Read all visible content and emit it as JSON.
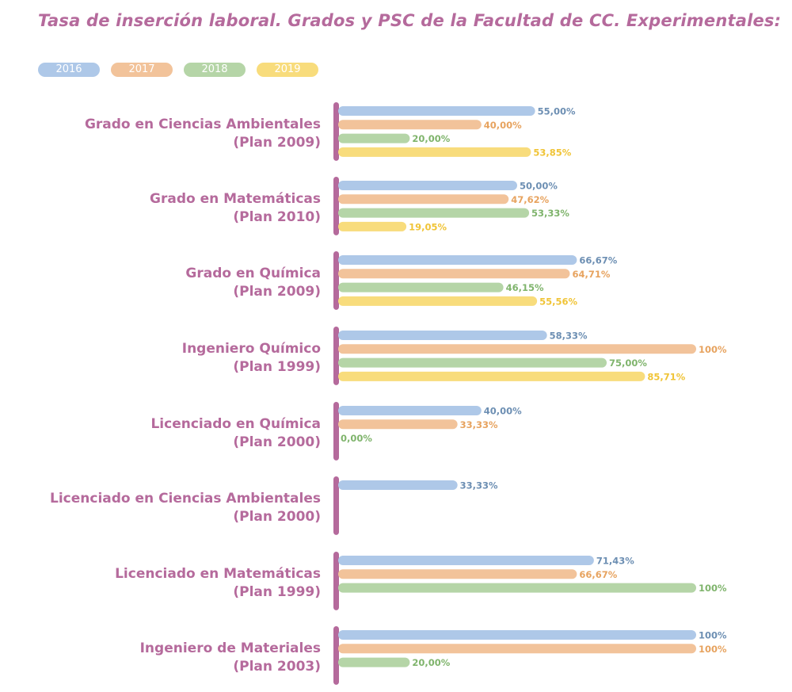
{
  "chart_data": {
    "type": "bar",
    "orientation": "horizontal",
    "title": "Tasa de inserción laboral. Grados y PSC de la Facultad de CC. Experimentales:",
    "xlim": [
      0,
      100
    ],
    "legend_position": "top-left",
    "grid": false,
    "categories": [
      [
        "Grado en Ciencias Ambientales",
        "(Plan 2009)"
      ],
      [
        "Grado en Matemáticas",
        "(Plan 2010)"
      ],
      [
        "Grado en Química",
        "(Plan 2009)"
      ],
      [
        "Ingeniero Químico",
        "(Plan 1999)"
      ],
      [
        "Licenciado en Química",
        "(Plan 2000)"
      ],
      [
        "Licenciado en Ciencias Ambientales",
        "(Plan 2000)"
      ],
      [
        "Licenciado en Matemáticas",
        "(Plan 1999)"
      ],
      [
        "Ingeniero de Materiales",
        "(Plan 2003)"
      ]
    ],
    "series": [
      {
        "name": "2016",
        "color": "#aec8e8",
        "text_color": "#6d8fb3",
        "values": [
          55.0,
          50.0,
          66.67,
          58.33,
          40.0,
          33.33,
          71.43,
          100
        ],
        "labels": [
          "55,00%",
          "50,00%",
          "66,67%",
          "58,33%",
          "40,00%",
          "33,33%",
          "71,43%",
          "100%"
        ]
      },
      {
        "name": "2017",
        "color": "#f2c39a",
        "text_color": "#e7a35f",
        "values": [
          40.0,
          47.62,
          64.71,
          100,
          33.33,
          null,
          66.67,
          100
        ],
        "labels": [
          "40,00%",
          "47,62%",
          "64,71%",
          "100%",
          "33,33%",
          null,
          "66,67%",
          "100%"
        ]
      },
      {
        "name": "2018",
        "color": "#b5d5a7",
        "text_color": "#7fb46c",
        "values": [
          20.0,
          53.33,
          46.15,
          75.0,
          0.0,
          null,
          100,
          20.0
        ],
        "labels": [
          "20,00%",
          "53,33%",
          "46,15%",
          "75,00%",
          "0,00%",
          null,
          "100%",
          "20,00%"
        ]
      },
      {
        "name": "2019",
        "color": "#f8dc7c",
        "text_color": "#f0c437",
        "values": [
          53.85,
          19.05,
          55.56,
          85.71,
          null,
          null,
          null,
          null
        ],
        "labels": [
          "53,85%",
          "19,05%",
          "55,56%",
          "85,71%",
          null,
          null,
          null,
          null
        ]
      }
    ],
    "axis_bar_color": "#b56a9c"
  }
}
